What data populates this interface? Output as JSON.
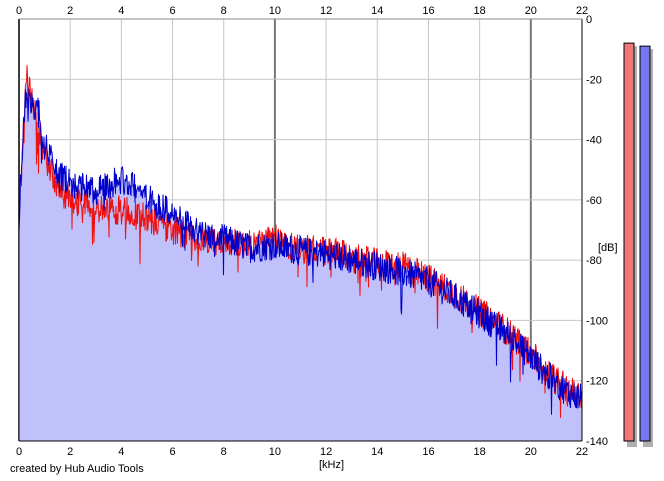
{
  "chart_data": {
    "type": "area",
    "title": "",
    "xlabel": "[kHz]",
    "ylabel": "[dB]",
    "xlim": [
      0,
      22
    ],
    "ylim": [
      -140,
      0
    ],
    "x_ticks": [
      "0",
      "2",
      "4",
      "6",
      "8",
      "10",
      "12",
      "14",
      "16",
      "18",
      "20",
      "22"
    ],
    "y_ticks": [
      "0",
      "-20",
      "-40",
      "-60",
      "-80",
      "-100",
      "-120",
      "-140"
    ],
    "grid": true,
    "series": [
      {
        "color": "#ee1111",
        "x": [
          0.0,
          0.1,
          0.2,
          0.3,
          0.4,
          0.6,
          0.8,
          1.0,
          1.3,
          1.6,
          2.0,
          2.5,
          3.0,
          3.5,
          4.0,
          4.5,
          5.0,
          5.5,
          6.0,
          7.0,
          8.0,
          9.0,
          10.0,
          10.5,
          11.0,
          12.0,
          13.0,
          14.0,
          15.0,
          16.0,
          17.0,
          18.0,
          19.0,
          20.0,
          20.5,
          21.0,
          21.5,
          22.0
        ],
        "values": [
          -66,
          -44,
          -30,
          -20,
          -22,
          -30,
          -38,
          -45,
          -52,
          -57,
          -60,
          -61,
          -62,
          -64,
          -63,
          -65,
          -66,
          -68,
          -70,
          -73,
          -74,
          -75,
          -73,
          -75,
          -76,
          -77,
          -79,
          -81,
          -82,
          -86,
          -91,
          -97,
          -103,
          -111,
          -116,
          -120,
          -123,
          -125
        ]
      },
      {
        "color": "#0000cc",
        "x": [
          0.0,
          0.1,
          0.2,
          0.3,
          0.4,
          0.6,
          0.8,
          1.0,
          1.3,
          1.6,
          2.0,
          2.5,
          3.0,
          3.5,
          4.0,
          4.5,
          5.0,
          5.5,
          6.0,
          7.0,
          8.0,
          9.0,
          10.0,
          10.5,
          11.0,
          12.0,
          13.0,
          14.0,
          15.0,
          16.0,
          17.0,
          18.0,
          19.0,
          20.0,
          20.5,
          21.0,
          21.5,
          22.0
        ],
        "values": [
          -66,
          -46,
          -32,
          -24,
          -25,
          -28,
          -32,
          -42,
          -47,
          -52,
          -54,
          -56,
          -57,
          -55,
          -53,
          -56,
          -59,
          -62,
          -65,
          -71,
          -73,
          -76,
          -75,
          -76,
          -77,
          -78,
          -80,
          -82,
          -84,
          -87,
          -92,
          -98,
          -104,
          -112,
          -117,
          -121,
          -124,
          -126
        ]
      }
    ],
    "level_meters": [
      {
        "color": "#ee7777",
        "peak_db": -8
      },
      {
        "color": "#7777ee",
        "peak_db": -9
      }
    ]
  },
  "footer": {
    "credit": "created by Hub Audio Tools"
  }
}
